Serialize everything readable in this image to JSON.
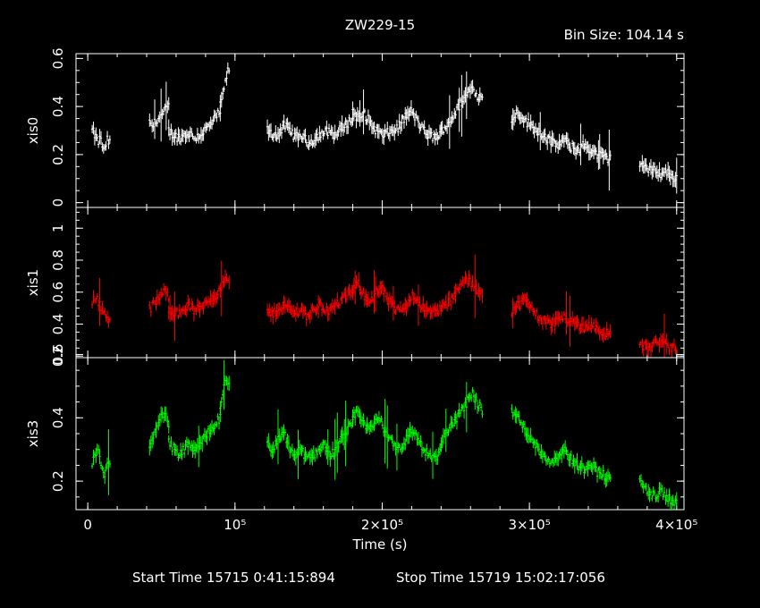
{
  "title": "ZW229-15",
  "bin_size_label": "Bin Size: 104.14 s",
  "xlabel": "Time (s)",
  "x_ticks": [
    {
      "value": 0,
      "label": "0"
    },
    {
      "value": 100000,
      "label": "10⁵"
    },
    {
      "value": 200000,
      "label": "2×10⁵"
    },
    {
      "value": 300000,
      "label": "3×10⁵"
    },
    {
      "value": 400000,
      "label": "4×10⁵"
    }
  ],
  "footer": {
    "start": "Start Time 15715  0:41:15:894",
    "stop": "Stop Time 15719 15:02:17:056"
  },
  "chart_data": [
    {
      "type": "scatter",
      "ylabel": "xis0",
      "color": "#ffffff",
      "xlim": [
        -8000,
        405000
      ],
      "ylim": [
        -0.02,
        0.62
      ],
      "y_ticks": [
        0,
        0.2,
        0.4,
        0.6
      ],
      "y_tick_labels": [
        "0",
        "0.2",
        "0.4",
        "0.6"
      ],
      "segments": [
        {
          "x0": 3000,
          "x1": 15000,
          "y": [
            0.3,
            0.28,
            0.25,
            0.27,
            0.2,
            0.26,
            0.25
          ]
        },
        {
          "x0": 42000,
          "x1": 55000,
          "y": [
            0.33,
            0.32,
            0.35,
            0.36,
            0.38,
            0.4
          ]
        },
        {
          "x0": 55000,
          "x1": 90000,
          "y": [
            0.3,
            0.28,
            0.27,
            0.28,
            0.29,
            0.27,
            0.28,
            0.3,
            0.32,
            0.35,
            0.38
          ]
        },
        {
          "x0": 90000,
          "x1": 96000,
          "y": [
            0.4,
            0.45,
            0.52,
            0.56
          ]
        },
        {
          "x0": 122000,
          "x1": 180000,
          "y": [
            0.3,
            0.28,
            0.29,
            0.32,
            0.3,
            0.27,
            0.28,
            0.25,
            0.26,
            0.28,
            0.29,
            0.3,
            0.28,
            0.31,
            0.33,
            0.35
          ]
        },
        {
          "x0": 180000,
          "x1": 240000,
          "y": [
            0.38,
            0.35,
            0.37,
            0.33,
            0.3,
            0.28,
            0.29,
            0.3,
            0.32,
            0.36,
            0.38,
            0.34,
            0.3,
            0.28,
            0.27,
            0.29
          ]
        },
        {
          "x0": 240000,
          "x1": 268000,
          "y": [
            0.3,
            0.32,
            0.35,
            0.38,
            0.42,
            0.45,
            0.48,
            0.45,
            0.43
          ]
        },
        {
          "x0": 288000,
          "x1": 355000,
          "y": [
            0.35,
            0.38,
            0.34,
            0.32,
            0.3,
            0.28,
            0.25,
            0.24,
            0.26,
            0.23,
            0.22,
            0.24,
            0.22,
            0.2,
            0.19,
            0.18
          ]
        },
        {
          "x0": 375000,
          "x1": 400000,
          "y": [
            0.17,
            0.15,
            0.13,
            0.14,
            0.12,
            0.13,
            0.11,
            0.1
          ]
        }
      ]
    },
    {
      "type": "scatter",
      "ylabel": "xis1",
      "color": "#ff0000",
      "xlim": [
        -8000,
        405000
      ],
      "ylim": [
        0.19,
        1.13
      ],
      "y_ticks": [
        0.2,
        0.4,
        0.6,
        0.8,
        1
      ],
      "y_tick_labels": [
        "0.2",
        "0.4",
        "0.6",
        "0.8",
        "1"
      ],
      "segments": [
        {
          "x0": 3000,
          "x1": 15000,
          "y": [
            0.52,
            0.58,
            0.55,
            0.5,
            0.48,
            0.45,
            0.42
          ]
        },
        {
          "x0": 42000,
          "x1": 55000,
          "y": [
            0.5,
            0.52,
            0.55,
            0.58,
            0.6,
            0.57
          ]
        },
        {
          "x0": 55000,
          "x1": 90000,
          "y": [
            0.5,
            0.48,
            0.46,
            0.5,
            0.52,
            0.48,
            0.5,
            0.53,
            0.56,
            0.58,
            0.6
          ]
        },
        {
          "x0": 90000,
          "x1": 96000,
          "y": [
            0.62,
            0.66,
            0.68,
            0.65
          ]
        },
        {
          "x0": 122000,
          "x1": 180000,
          "y": [
            0.48,
            0.46,
            0.5,
            0.52,
            0.49,
            0.47,
            0.5,
            0.45,
            0.48,
            0.52,
            0.5,
            0.48,
            0.52,
            0.55,
            0.58,
            0.6
          ]
        },
        {
          "x0": 180000,
          "x1": 240000,
          "y": [
            0.62,
            0.65,
            0.58,
            0.55,
            0.6,
            0.62,
            0.55,
            0.5,
            0.48,
            0.52,
            0.58,
            0.55,
            0.5,
            0.47,
            0.48,
            0.5
          ]
        },
        {
          "x0": 240000,
          "x1": 268000,
          "y": [
            0.5,
            0.52,
            0.55,
            0.6,
            0.65,
            0.68,
            0.65,
            0.62,
            0.6
          ]
        },
        {
          "x0": 288000,
          "x1": 355000,
          "y": [
            0.48,
            0.52,
            0.55,
            0.5,
            0.45,
            0.42,
            0.4,
            0.43,
            0.45,
            0.42,
            0.4,
            0.38,
            0.4,
            0.37,
            0.35,
            0.33
          ]
        },
        {
          "x0": 375000,
          "x1": 400000,
          "y": [
            0.28,
            0.26,
            0.25,
            0.28,
            0.3,
            0.26,
            0.25,
            0.24
          ]
        }
      ]
    },
    {
      "type": "scatter",
      "ylabel": "xis3",
      "color": "#00ff00",
      "xlim": [
        -8000,
        405000
      ],
      "ylim": [
        0.11,
        0.59
      ],
      "y_ticks": [
        0.2,
        0.4,
        0.6
      ],
      "y_tick_labels": [
        "0.2",
        "0.4",
        "0.6"
      ],
      "segments": [
        {
          "x0": 3000,
          "x1": 15000,
          "y": [
            0.26,
            0.28,
            0.3,
            0.25,
            0.22,
            0.24,
            0.26
          ]
        },
        {
          "x0": 42000,
          "x1": 55000,
          "y": [
            0.32,
            0.35,
            0.38,
            0.4,
            0.42,
            0.38
          ]
        },
        {
          "x0": 55000,
          "x1": 90000,
          "y": [
            0.32,
            0.3,
            0.28,
            0.3,
            0.32,
            0.29,
            0.31,
            0.34,
            0.36,
            0.38,
            0.4
          ]
        },
        {
          "x0": 90000,
          "x1": 96000,
          "y": [
            0.42,
            0.48,
            0.52,
            0.5
          ]
        },
        {
          "x0": 122000,
          "x1": 180000,
          "y": [
            0.32,
            0.3,
            0.33,
            0.35,
            0.3,
            0.28,
            0.3,
            0.27,
            0.28,
            0.3,
            0.32,
            0.28,
            0.3,
            0.33,
            0.36,
            0.38
          ]
        },
        {
          "x0": 180000,
          "x1": 240000,
          "y": [
            0.4,
            0.42,
            0.38,
            0.36,
            0.4,
            0.38,
            0.34,
            0.32,
            0.3,
            0.33,
            0.36,
            0.34,
            0.3,
            0.28,
            0.27,
            0.3
          ]
        },
        {
          "x0": 240000,
          "x1": 268000,
          "y": [
            0.32,
            0.35,
            0.38,
            0.4,
            0.42,
            0.45,
            0.48,
            0.45,
            0.42
          ]
        },
        {
          "x0": 288000,
          "x1": 355000,
          "y": [
            0.42,
            0.4,
            0.36,
            0.34,
            0.3,
            0.28,
            0.26,
            0.28,
            0.3,
            0.27,
            0.25,
            0.24,
            0.26,
            0.23,
            0.22,
            0.2
          ]
        },
        {
          "x0": 375000,
          "x1": 400000,
          "y": [
            0.2,
            0.18,
            0.16,
            0.15,
            0.17,
            0.15,
            0.14,
            0.13
          ]
        }
      ]
    }
  ]
}
